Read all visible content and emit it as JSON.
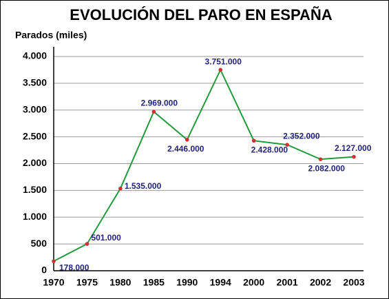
{
  "chart_data": {
    "type": "line",
    "title": "EVOLUCIÓN DEL PARO EN ESPAÑA",
    "y_label": "Parados (miles)",
    "categories": [
      "1970",
      "1975",
      "1980",
      "1985",
      "1990",
      "1994",
      "2000",
      "2001",
      "2002",
      "2003"
    ],
    "series": [
      {
        "name": "Parados",
        "color": "#1f9a3c",
        "marker_color": "#d03030",
        "values": [
          178,
          501,
          1535,
          2969,
          2446,
          3751,
          2428,
          2352,
          2082,
          2127
        ],
        "value_labels": [
          "178.000",
          "501.000",
          "1.535.000",
          "2.969.000",
          "2.446.000",
          "3.751.000",
          "2.428.000",
          "2.352.000",
          "2.082.000",
          "2.127.000"
        ]
      }
    ],
    "ylim": [
      0,
      4000
    ],
    "yticks": [
      0,
      500,
      {
        "value": 1000,
        "label": "1.000"
      },
      {
        "value": 1500,
        "label": "1.500"
      },
      {
        "value": 2000,
        "label": "2.000"
      },
      {
        "value": 2500,
        "label": "2.500"
      },
      {
        "value": 3000,
        "label": "3.000"
      },
      {
        "value": 3500,
        "label": "3.500"
      },
      {
        "value": 4000,
        "label": "4.000"
      }
    ],
    "grid": true
  }
}
